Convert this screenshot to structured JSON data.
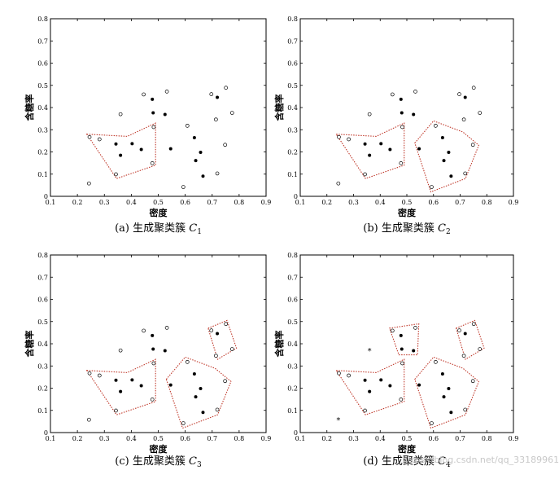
{
  "chart_data": [
    {
      "type": "scatter",
      "caption_prefix": "(a) 生成聚类簇 ",
      "caption_var": "C",
      "caption_sub": "1",
      "xlabel": "密度",
      "ylabel": "含糖率",
      "xlim": [
        0.1,
        0.9
      ],
      "ylim": [
        0,
        0.8
      ],
      "xticks": [
        "0.1",
        "0.2",
        "0.3",
        "0.4",
        "0.5",
        "0.6",
        "0.7",
        "0.8",
        "0.9"
      ],
      "yticks": [
        "0",
        "0.1",
        "0.2",
        "0.3",
        "0.4",
        "0.5",
        "0.6",
        "0.7",
        "0.8"
      ],
      "series": [
        {
          "marker": "filled",
          "points": [
            [
              0.343,
              0.236
            ],
            [
              0.36,
              0.185
            ],
            [
              0.403,
              0.237
            ],
            [
              0.437,
              0.211
            ],
            [
              0.478,
              0.437
            ],
            [
              0.481,
              0.376
            ],
            [
              0.525,
              0.369
            ],
            [
              0.546,
              0.214
            ],
            [
              0.634,
              0.264
            ],
            [
              0.639,
              0.161
            ],
            [
              0.657,
              0.198
            ],
            [
              0.666,
              0.091
            ],
            [
              0.719,
              0.446
            ]
          ]
        },
        {
          "marker": "hollow",
          "points": [
            [
              0.243,
              0.058
            ],
            [
              0.245,
              0.267
            ],
            [
              0.282,
              0.257
            ],
            [
              0.343,
              0.099
            ],
            [
              0.36,
              0.37
            ],
            [
              0.446,
              0.459
            ],
            [
              0.478,
              0.149
            ],
            [
              0.483,
              0.312
            ],
            [
              0.532,
              0.472
            ],
            [
              0.593,
              0.042
            ],
            [
              0.608,
              0.318
            ],
            [
              0.697,
              0.46
            ],
            [
              0.719,
              0.103
            ],
            [
              0.714,
              0.346
            ],
            [
              0.748,
              0.232
            ],
            [
              0.751,
              0.489
            ],
            [
              0.774,
              0.376
            ]
          ]
        }
      ],
      "clusters": [
        [
          [
            0.235,
            0.28
          ],
          [
            0.385,
            0.27
          ],
          [
            0.49,
            0.33
          ],
          [
            0.49,
            0.14
          ],
          [
            0.345,
            0.08
          ]
        ]
      ]
    },
    {
      "type": "scatter",
      "caption_prefix": "(b) 生成聚类簇 ",
      "caption_var": "C",
      "caption_sub": "2",
      "xlabel": "密度",
      "ylabel": "含糖率",
      "xlim": [
        0.1,
        0.9
      ],
      "ylim": [
        0,
        0.8
      ],
      "xticks": [
        "0.1",
        "0.2",
        "0.3",
        "0.4",
        "0.5",
        "0.6",
        "0.7",
        "0.8",
        "0.9"
      ],
      "yticks": [
        "0",
        "0.1",
        "0.2",
        "0.3",
        "0.4",
        "0.5",
        "0.6",
        "0.7",
        "0.8"
      ],
      "series": [
        {
          "marker": "filled",
          "points": [
            [
              0.343,
              0.236
            ],
            [
              0.36,
              0.185
            ],
            [
              0.403,
              0.237
            ],
            [
              0.437,
              0.211
            ],
            [
              0.478,
              0.437
            ],
            [
              0.481,
              0.376
            ],
            [
              0.525,
              0.369
            ],
            [
              0.546,
              0.214
            ],
            [
              0.634,
              0.264
            ],
            [
              0.639,
              0.161
            ],
            [
              0.657,
              0.198
            ],
            [
              0.666,
              0.091
            ],
            [
              0.719,
              0.446
            ]
          ]
        },
        {
          "marker": "hollow",
          "points": [
            [
              0.243,
              0.058
            ],
            [
              0.245,
              0.267
            ],
            [
              0.282,
              0.257
            ],
            [
              0.343,
              0.099
            ],
            [
              0.36,
              0.37
            ],
            [
              0.446,
              0.459
            ],
            [
              0.478,
              0.149
            ],
            [
              0.483,
              0.312
            ],
            [
              0.532,
              0.472
            ],
            [
              0.593,
              0.042
            ],
            [
              0.608,
              0.318
            ],
            [
              0.697,
              0.46
            ],
            [
              0.719,
              0.103
            ],
            [
              0.714,
              0.346
            ],
            [
              0.748,
              0.232
            ],
            [
              0.751,
              0.489
            ],
            [
              0.774,
              0.376
            ]
          ]
        }
      ],
      "clusters": [
        [
          [
            0.235,
            0.28
          ],
          [
            0.385,
            0.27
          ],
          [
            0.49,
            0.33
          ],
          [
            0.49,
            0.14
          ],
          [
            0.345,
            0.08
          ]
        ],
        [
          [
            0.53,
            0.24
          ],
          [
            0.6,
            0.34
          ],
          [
            0.71,
            0.29
          ],
          [
            0.77,
            0.23
          ],
          [
            0.72,
            0.08
          ],
          [
            0.59,
            0.02
          ]
        ]
      ]
    },
    {
      "type": "scatter",
      "caption_prefix": "(c) 生成聚类簇 ",
      "caption_var": "C",
      "caption_sub": "3",
      "xlabel": "密度",
      "ylabel": "含糖率",
      "xlim": [
        0.1,
        0.9
      ],
      "ylim": [
        0,
        0.8
      ],
      "xticks": [
        "0.1",
        "0.2",
        "0.3",
        "0.4",
        "0.5",
        "0.6",
        "0.7",
        "0.8",
        "0.9"
      ],
      "yticks": [
        "0",
        "0.1",
        "0.2",
        "0.3",
        "0.4",
        "0.5",
        "0.6",
        "0.7",
        "0.8"
      ],
      "series": [
        {
          "marker": "filled",
          "points": [
            [
              0.343,
              0.236
            ],
            [
              0.36,
              0.185
            ],
            [
              0.403,
              0.237
            ],
            [
              0.437,
              0.211
            ],
            [
              0.478,
              0.437
            ],
            [
              0.481,
              0.376
            ],
            [
              0.525,
              0.369
            ],
            [
              0.546,
              0.214
            ],
            [
              0.634,
              0.264
            ],
            [
              0.639,
              0.161
            ],
            [
              0.657,
              0.198
            ],
            [
              0.666,
              0.091
            ],
            [
              0.719,
              0.446
            ]
          ]
        },
        {
          "marker": "hollow",
          "points": [
            [
              0.243,
              0.058
            ],
            [
              0.245,
              0.267
            ],
            [
              0.282,
              0.257
            ],
            [
              0.343,
              0.099
            ],
            [
              0.36,
              0.37
            ],
            [
              0.446,
              0.459
            ],
            [
              0.478,
              0.149
            ],
            [
              0.483,
              0.312
            ],
            [
              0.532,
              0.472
            ],
            [
              0.593,
              0.042
            ],
            [
              0.608,
              0.318
            ],
            [
              0.697,
              0.46
            ],
            [
              0.719,
              0.103
            ],
            [
              0.714,
              0.346
            ],
            [
              0.748,
              0.232
            ],
            [
              0.751,
              0.489
            ],
            [
              0.774,
              0.376
            ]
          ]
        }
      ],
      "clusters": [
        [
          [
            0.235,
            0.28
          ],
          [
            0.385,
            0.27
          ],
          [
            0.49,
            0.33
          ],
          [
            0.49,
            0.14
          ],
          [
            0.345,
            0.08
          ]
        ],
        [
          [
            0.53,
            0.24
          ],
          [
            0.6,
            0.34
          ],
          [
            0.71,
            0.29
          ],
          [
            0.77,
            0.23
          ],
          [
            0.72,
            0.08
          ],
          [
            0.59,
            0.02
          ]
        ],
        [
          [
            0.685,
            0.47
          ],
          [
            0.755,
            0.505
          ],
          [
            0.79,
            0.38
          ],
          [
            0.72,
            0.33
          ]
        ]
      ]
    },
    {
      "type": "scatter",
      "caption_prefix": "(d) 生成聚类簇 ",
      "caption_var": "C",
      "caption_sub": "4",
      "xlabel": "密度",
      "ylabel": "含糖率",
      "xlim": [
        0.1,
        0.9
      ],
      "ylim": [
        0,
        0.8
      ],
      "xticks": [
        "0.1",
        "0.2",
        "0.3",
        "0.4",
        "0.5",
        "0.6",
        "0.7",
        "0.8",
        "0.9"
      ],
      "yticks": [
        "0",
        "0.1",
        "0.2",
        "0.3",
        "0.4",
        "0.5",
        "0.6",
        "0.7",
        "0.8"
      ],
      "series": [
        {
          "marker": "filled",
          "points": [
            [
              0.343,
              0.236
            ],
            [
              0.36,
              0.185
            ],
            [
              0.403,
              0.237
            ],
            [
              0.437,
              0.211
            ],
            [
              0.478,
              0.437
            ],
            [
              0.481,
              0.376
            ],
            [
              0.525,
              0.369
            ],
            [
              0.546,
              0.214
            ],
            [
              0.634,
              0.264
            ],
            [
              0.639,
              0.161
            ],
            [
              0.657,
              0.198
            ],
            [
              0.666,
              0.091
            ],
            [
              0.719,
              0.446
            ]
          ]
        },
        {
          "marker": "hollow",
          "points": [
            [
              0.245,
              0.267
            ],
            [
              0.282,
              0.257
            ],
            [
              0.343,
              0.099
            ],
            [
              0.446,
              0.459
            ],
            [
              0.478,
              0.149
            ],
            [
              0.483,
              0.312
            ],
            [
              0.532,
              0.472
            ],
            [
              0.593,
              0.042
            ],
            [
              0.608,
              0.318
            ],
            [
              0.697,
              0.46
            ],
            [
              0.719,
              0.103
            ],
            [
              0.714,
              0.346
            ],
            [
              0.748,
              0.232
            ],
            [
              0.751,
              0.489
            ],
            [
              0.774,
              0.376
            ]
          ]
        },
        {
          "marker": "star",
          "points": [
            [
              0.243,
              0.058
            ],
            [
              0.36,
              0.37
            ]
          ]
        }
      ],
      "clusters": [
        [
          [
            0.235,
            0.28
          ],
          [
            0.385,
            0.27
          ],
          [
            0.49,
            0.33
          ],
          [
            0.49,
            0.14
          ],
          [
            0.345,
            0.08
          ]
        ],
        [
          [
            0.53,
            0.24
          ],
          [
            0.6,
            0.34
          ],
          [
            0.71,
            0.29
          ],
          [
            0.77,
            0.23
          ],
          [
            0.72,
            0.08
          ],
          [
            0.59,
            0.02
          ]
        ],
        [
          [
            0.685,
            0.47
          ],
          [
            0.755,
            0.505
          ],
          [
            0.79,
            0.38
          ],
          [
            0.72,
            0.33
          ]
        ],
        [
          [
            0.435,
            0.47
          ],
          [
            0.545,
            0.49
          ],
          [
            0.54,
            0.35
          ],
          [
            0.47,
            0.35
          ]
        ]
      ]
    }
  ],
  "watermark": "https://blog.csdn.net/qq_33189961"
}
